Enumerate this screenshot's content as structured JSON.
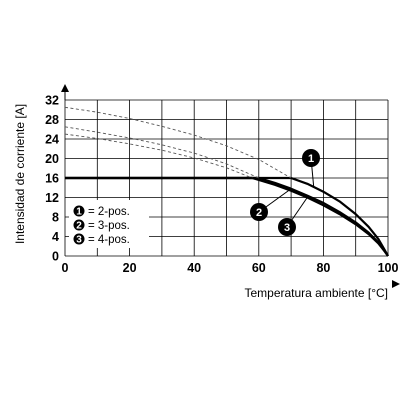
{
  "chart_data": {
    "type": "line",
    "xlabel": "Temperatura ambiente [°C]",
    "ylabel": "Intensidad de corriente [A]",
    "xlim": [
      0,
      100
    ],
    "ylim": [
      0,
      32
    ],
    "x_ticks": [
      "0",
      "20",
      "40",
      "60",
      "80",
      "100"
    ],
    "y_ticks": [
      "0",
      "4",
      "8",
      "12",
      "16",
      "20",
      "24",
      "28",
      "32"
    ],
    "grid": true,
    "legend": [
      {
        "marker": "1",
        "text": "= 2-pos."
      },
      {
        "marker": "2",
        "text": "= 3-pos."
      },
      {
        "marker": "3",
        "text": "= 4-pos."
      }
    ],
    "series": [
      {
        "marker": "1",
        "style": "solid",
        "points": [
          [
            0,
            16
          ],
          [
            70,
            16
          ],
          [
            75,
            14.8
          ],
          [
            80,
            13.2
          ],
          [
            85,
            11.2
          ],
          [
            90,
            8.6
          ],
          [
            94,
            6
          ],
          [
            97,
            3.5
          ],
          [
            99,
            1.2
          ],
          [
            100,
            0
          ]
        ]
      },
      {
        "marker": "2",
        "style": "solid",
        "points": [
          [
            0,
            16
          ],
          [
            60,
            16
          ],
          [
            65,
            15
          ],
          [
            70,
            13.8
          ],
          [
            75,
            12.4
          ],
          [
            80,
            10.9
          ],
          [
            85,
            9
          ],
          [
            90,
            6.9
          ],
          [
            94,
            4.8
          ],
          [
            97,
            2.8
          ],
          [
            99,
            1
          ],
          [
            100,
            0
          ]
        ]
      },
      {
        "marker": "3",
        "style": "solid",
        "points": [
          [
            0,
            16
          ],
          [
            58,
            16
          ],
          [
            65,
            14.6
          ],
          [
            70,
            13.4
          ],
          [
            75,
            12
          ],
          [
            80,
            10.4
          ],
          [
            85,
            8.6
          ],
          [
            90,
            6.5
          ],
          [
            94,
            4.5
          ],
          [
            97,
            2.6
          ],
          [
            99,
            0.9
          ],
          [
            100,
            0
          ]
        ]
      },
      {
        "marker": "1",
        "style": "dashed",
        "points": [
          [
            0,
            30.5
          ],
          [
            10,
            29.5
          ],
          [
            20,
            28.2
          ],
          [
            30,
            26.6
          ],
          [
            40,
            24.8
          ],
          [
            50,
            22.6
          ],
          [
            60,
            19.8
          ],
          [
            70,
            16
          ]
        ]
      },
      {
        "marker": "2",
        "style": "dashed",
        "points": [
          [
            0,
            26.5
          ],
          [
            10,
            25.4
          ],
          [
            20,
            24.2
          ],
          [
            30,
            22.8
          ],
          [
            40,
            21.1
          ],
          [
            50,
            18.9
          ],
          [
            60,
            16
          ]
        ]
      },
      {
        "marker": "3",
        "style": "dashed",
        "points": [
          [
            0,
            25
          ],
          [
            10,
            24.1
          ],
          [
            20,
            23
          ],
          [
            30,
            21.7
          ],
          [
            40,
            20.1
          ],
          [
            50,
            18.1
          ],
          [
            58,
            16
          ]
        ]
      }
    ],
    "callouts": [
      {
        "marker": "1",
        "points_to": [
          77,
          14.2
        ]
      },
      {
        "marker": "2",
        "points_to": [
          70,
          13.8
        ]
      },
      {
        "marker": "3",
        "points_to": [
          75,
          12.0
        ]
      }
    ]
  },
  "colors": {
    "solid": "#000000",
    "dashed": "#555555",
    "grid": "#000000"
  }
}
